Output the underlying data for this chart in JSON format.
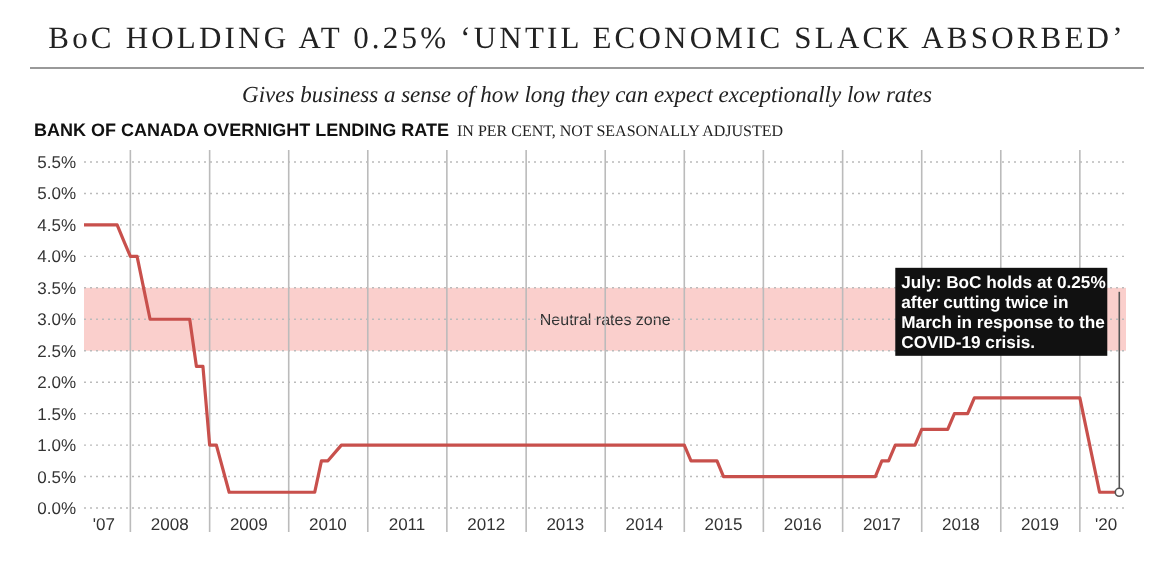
{
  "chart_data": {
    "type": "line",
    "title": "BoC HOLDING AT 0.25% ‘UNTIL ECONOMIC SLACK ABSORBED’",
    "subtitle": "Gives business a sense of how long they can expect exceptionally low rates",
    "ylabel": "BANK OF CANADA OVERNIGHT LENDING RATE",
    "x": [
      "2007-06",
      "2007-11",
      "2007-12",
      "2008-01",
      "2008-02",
      "2008-04",
      "2008-10",
      "2008-11",
      "2008-12",
      "2009-01",
      "2009-02",
      "2009-04",
      "2010-05",
      "2010-06",
      "2010-07",
      "2010-09",
      "2015-01",
      "2015-02",
      "2015-06",
      "2015-07",
      "2017-06",
      "2017-07",
      "2017-08",
      "2017-09",
      "2017-12",
      "2018-01",
      "2018-05",
      "2018-06",
      "2018-08",
      "2018-09",
      "2020-01",
      "2020-04",
      "2020-07"
    ],
    "series": [
      {
        "color": "#c8504c",
        "values": [
          4.5,
          4.5,
          4.25,
          4.0,
          4.0,
          3.0,
          3.0,
          2.25,
          2.25,
          1.0,
          1.0,
          0.25,
          0.25,
          0.75,
          0.75,
          1.0,
          1.0,
          0.75,
          0.75,
          0.5,
          0.5,
          0.75,
          0.75,
          1.0,
          1.0,
          1.25,
          1.25,
          1.5,
          1.5,
          1.75,
          1.75,
          0.25,
          0.25
        ]
      }
    ],
    "xlim": [
      "2007-06",
      "2020-08"
    ],
    "xticks": [
      {
        "value": "2007-09",
        "label": "'07"
      },
      {
        "value": "2008-01",
        "label": null
      },
      {
        "value": "2008-07",
        "label": "2008"
      },
      {
        "value": "2009-01",
        "label": null
      },
      {
        "value": "2009-07",
        "label": "2009"
      },
      {
        "value": "2010-01",
        "label": null
      },
      {
        "value": "2010-07",
        "label": "2010"
      },
      {
        "value": "2011-01",
        "label": null
      },
      {
        "value": "2011-07",
        "label": "2011"
      },
      {
        "value": "2012-01",
        "label": null
      },
      {
        "value": "2012-07",
        "label": "2012"
      },
      {
        "value": "2013-01",
        "label": null
      },
      {
        "value": "2013-07",
        "label": "2013"
      },
      {
        "value": "2014-01",
        "label": null
      },
      {
        "value": "2014-07",
        "label": "2014"
      },
      {
        "value": "2015-01",
        "label": null
      },
      {
        "value": "2015-07",
        "label": "2015"
      },
      {
        "value": "2016-01",
        "label": null
      },
      {
        "value": "2016-07",
        "label": "2016"
      },
      {
        "value": "2017-01",
        "label": null
      },
      {
        "value": "2017-07",
        "label": "2017"
      },
      {
        "value": "2018-01",
        "label": null
      },
      {
        "value": "2018-07",
        "label": "2018"
      },
      {
        "value": "2019-01",
        "label": null
      },
      {
        "value": "2019-07",
        "label": "2019"
      },
      {
        "value": "2020-01",
        "label": null
      },
      {
        "value": "2020-05",
        "label": "'20"
      }
    ],
    "ylim": [
      0,
      5.5
    ],
    "yticks": [
      {
        "value": 0,
        "label": "0.0%"
      },
      {
        "value": 0.5,
        "label": "0.5%"
      },
      {
        "value": 1,
        "label": "1.0%"
      },
      {
        "value": 1.5,
        "label": "1.5%"
      },
      {
        "value": 2,
        "label": "2.0%"
      },
      {
        "value": 2.5,
        "label": "2.5%"
      },
      {
        "value": 3,
        "label": "3.0%"
      },
      {
        "value": 3.5,
        "label": "3.5%"
      },
      {
        "value": 4,
        "label": "4.0%"
      },
      {
        "value": 4.5,
        "label": "4.5%"
      },
      {
        "value": 5,
        "label": "5.0%"
      },
      {
        "value": 5.5,
        "label": "5.5%"
      }
    ],
    "grid": true,
    "bands": [
      {
        "axis": "y",
        "from": 2.5,
        "to": 3.5,
        "label": "Neutral rates zone",
        "color": "#f9c3bf"
      }
    ],
    "annotations": [
      "IN PER CENT, NOT SEASONALLY ADJUSTED",
      {
        "text": "July: BoC holds at 0.25% after cutting twice in March in response to the COVID-19 crisis.",
        "x": "2020-07",
        "y": 0.25
      }
    ]
  }
}
